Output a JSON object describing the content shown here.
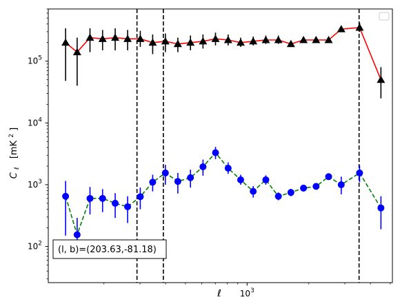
{
  "chart_data": {
    "type": "scatter",
    "title": "",
    "xlabel": "ℓ",
    "ylabel": "C",
    "ylabel_sub": "ℓ",
    "ylabel_units": "[mK",
    "ylabel_units_sup": "2",
    "ylabel_units_close": "]",
    "xscale": "log",
    "yscale": "log",
    "xlim": [
      107,
      5120
    ],
    "ylim": [
      26,
      700000
    ],
    "grid": false,
    "legend": "top-right (empty)",
    "xticks": [
      {
        "value": 1000,
        "base": "10",
        "exp": "3"
      }
    ],
    "yticks": [
      {
        "value": 100,
        "base": "10",
        "exp": "2"
      },
      {
        "value": 1000,
        "base": "10",
        "exp": "3"
      },
      {
        "value": 10000,
        "base": "10",
        "exp": "4"
      },
      {
        "value": 100000,
        "base": "10",
        "exp": "5"
      }
    ],
    "annotation": "(l, b)=(203.63,-81.18)",
    "vlines": [
      290,
      390,
      3520
    ],
    "series": [
      {
        "marker": "triangle",
        "color": "#000000",
        "line_color": "#ff0000",
        "line_style": "solid",
        "points": [
          {
            "x": 130,
            "y": 200000,
            "lo": 48000,
            "hi": 340000
          },
          {
            "x": 148,
            "y": 140000,
            "lo": 40000,
            "hi": 240000
          },
          {
            "x": 171,
            "y": 240000,
            "lo": 140000,
            "hi": 340000
          },
          {
            "x": 197,
            "y": 230000,
            "lo": 150000,
            "hi": 320000
          },
          {
            "x": 227,
            "y": 240000,
            "lo": 150000,
            "hi": 340000
          },
          {
            "x": 261,
            "y": 230000,
            "lo": 150000,
            "hi": 320000
          },
          {
            "x": 301,
            "y": 230000,
            "lo": 170000,
            "hi": 310000
          },
          {
            "x": 346,
            "y": 200000,
            "lo": 130000,
            "hi": 270000
          },
          {
            "x": 399,
            "y": 210000,
            "lo": 140000,
            "hi": 280000
          },
          {
            "x": 459,
            "y": 190000,
            "lo": 140000,
            "hi": 240000
          },
          {
            "x": 529,
            "y": 200000,
            "lo": 150000,
            "hi": 260000
          },
          {
            "x": 609,
            "y": 210000,
            "lo": 160000,
            "hi": 270000
          },
          {
            "x": 701,
            "y": 230000,
            "lo": 180000,
            "hi": 290000
          },
          {
            "x": 808,
            "y": 220000,
            "lo": 180000,
            "hi": 270000
          },
          {
            "x": 930,
            "y": 200000,
            "lo": 170000,
            "hi": 240000
          },
          {
            "x": 1071,
            "y": 210000,
            "lo": 180000,
            "hi": 250000
          },
          {
            "x": 1234,
            "y": 220000,
            "lo": 190000,
            "hi": 260000
          },
          {
            "x": 1421,
            "y": 220000,
            "lo": 190000,
            "hi": 260000
          },
          {
            "x": 1636,
            "y": 190000,
            "lo": 170000,
            "hi": 210000
          },
          {
            "x": 1885,
            "y": 220000,
            "lo": 200000,
            "hi": 240000
          },
          {
            "x": 2171,
            "y": 220000,
            "lo": 200000,
            "hi": 240000
          },
          {
            "x": 2500,
            "y": 220000,
            "lo": 200000,
            "hi": 240000
          },
          {
            "x": 2880,
            "y": 330000,
            "lo": 300000,
            "hi": 360000
          },
          {
            "x": 3540,
            "y": 350000,
            "lo": 300000,
            "hi": 420000
          },
          {
            "x": 4500,
            "y": 50000,
            "lo": 25000,
            "hi": 80000
          }
        ]
      },
      {
        "marker": "circle",
        "color": "#0000ff",
        "line_color": "#008000",
        "line_style": "dashed",
        "points": [
          {
            "x": 130,
            "y": 650,
            "lo": 150,
            "hi": 1150
          },
          {
            "x": 148,
            "y": 155,
            "lo": 70,
            "hi": 290
          },
          {
            "x": 171,
            "y": 600,
            "lo": 330,
            "hi": 920
          },
          {
            "x": 197,
            "y": 600,
            "lo": 360,
            "hi": 850
          },
          {
            "x": 227,
            "y": 500,
            "lo": 290,
            "hi": 730
          },
          {
            "x": 261,
            "y": 440,
            "lo": 240,
            "hi": 650
          },
          {
            "x": 301,
            "y": 640,
            "lo": 400,
            "hi": 900
          },
          {
            "x": 346,
            "y": 1100,
            "lo": 780,
            "hi": 1450
          },
          {
            "x": 399,
            "y": 1550,
            "lo": 1000,
            "hi": 2100
          },
          {
            "x": 459,
            "y": 1130,
            "lo": 720,
            "hi": 1550
          },
          {
            "x": 529,
            "y": 1300,
            "lo": 900,
            "hi": 1750
          },
          {
            "x": 609,
            "y": 1950,
            "lo": 1400,
            "hi": 2550
          },
          {
            "x": 701,
            "y": 3300,
            "lo": 2600,
            "hi": 4100
          },
          {
            "x": 808,
            "y": 1850,
            "lo": 1500,
            "hi": 2300
          },
          {
            "x": 930,
            "y": 1200,
            "lo": 1000,
            "hi": 1450
          },
          {
            "x": 1071,
            "y": 780,
            "lo": 620,
            "hi": 950
          },
          {
            "x": 1234,
            "y": 1200,
            "lo": 1000,
            "hi": 1420
          },
          {
            "x": 1421,
            "y": 650,
            "lo": 560,
            "hi": 750
          },
          {
            "x": 1636,
            "y": 750,
            "lo": 650,
            "hi": 850
          },
          {
            "x": 1885,
            "y": 880,
            "lo": 780,
            "hi": 990
          },
          {
            "x": 2171,
            "y": 940,
            "lo": 840,
            "hi": 1050
          },
          {
            "x": 2500,
            "y": 1350,
            "lo": 1200,
            "hi": 1500
          },
          {
            "x": 2880,
            "y": 1000,
            "lo": 700,
            "hi": 1350
          },
          {
            "x": 3540,
            "y": 1550,
            "lo": 1100,
            "hi": 2050
          },
          {
            "x": 4500,
            "y": 420,
            "lo": 190,
            "hi": 650
          }
        ]
      }
    ]
  }
}
